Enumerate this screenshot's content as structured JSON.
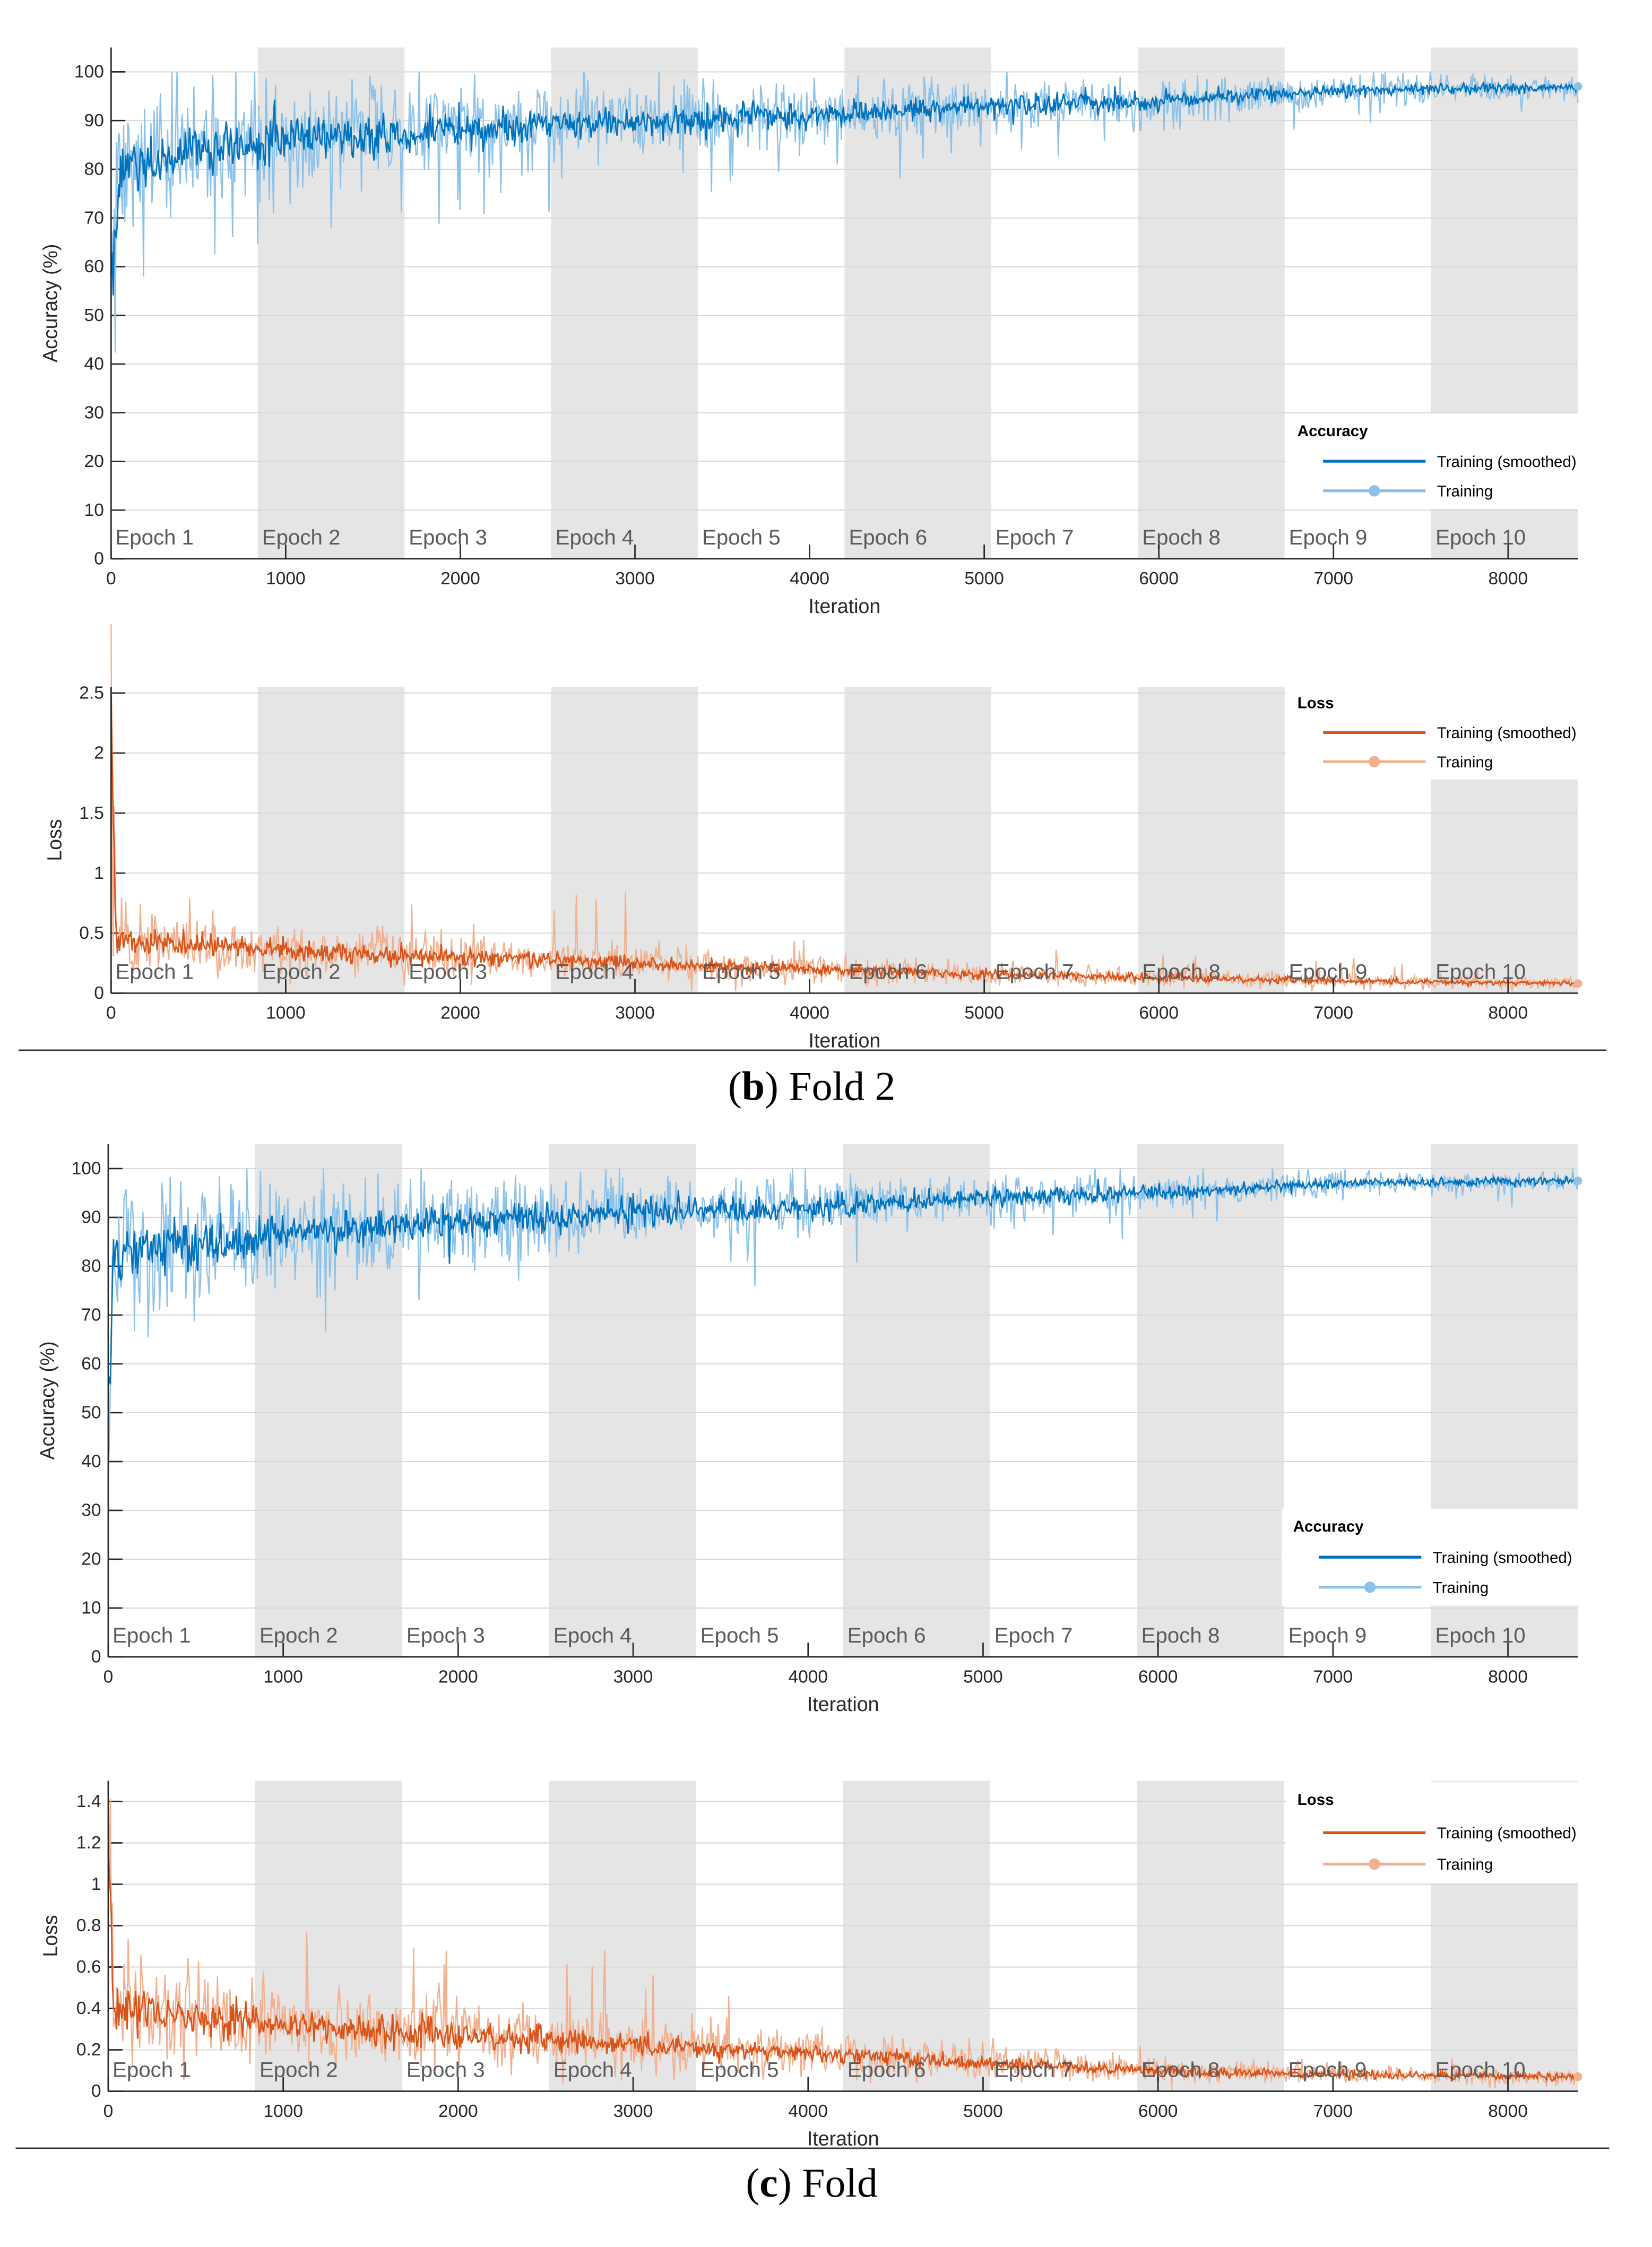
{
  "chart_data": [
    {
      "type": "line",
      "ylabel": "Accuracy (%)",
      "xlabel": "Iteration",
      "xlim": [
        0,
        8400
      ],
      "ylim": [
        0,
        105
      ],
      "xticks": [
        "0",
        "1000",
        "2000",
        "3000",
        "4000",
        "5000",
        "6000",
        "7000",
        "8000"
      ],
      "yticks": [
        "0",
        "10",
        "20",
        "30",
        "40",
        "50",
        "60",
        "70",
        "80",
        "90",
        "100"
      ],
      "grid": "horizontal",
      "epochs": [
        "Epoch 1",
        "Epoch 2",
        "Epoch 3",
        "Epoch 4",
        "Epoch 5",
        "Epoch 6",
        "Epoch 7",
        "Epoch 8",
        "Epoch 9",
        "Epoch 10"
      ],
      "legend": {
        "title": "Accuracy",
        "placement": "lower-right",
        "entries": [
          "Training (smoothed)",
          "Training"
        ]
      },
      "colors": {
        "smoothed": "#0072BD",
        "raw": "#8cc2ea"
      },
      "smoothed_trend": {
        "x": [
          0,
          50,
          500,
          1000,
          2000,
          3000,
          4000,
          5000,
          6000,
          7000,
          8400
        ],
        "y": [
          58,
          80,
          84,
          86,
          88,
          90,
          91,
          93,
          94,
          96,
          97
        ]
      }
    },
    {
      "type": "line",
      "ylabel": "Loss",
      "xlabel": "Iteration",
      "xlim": [
        0,
        8400
      ],
      "ylim": [
        0,
        2.55
      ],
      "xticks": [
        "0",
        "1000",
        "2000",
        "3000",
        "4000",
        "5000",
        "6000",
        "7000",
        "8000"
      ],
      "yticks": [
        "0",
        "0.5",
        "1",
        "1.5",
        "2",
        "2.5"
      ],
      "grid": "horizontal",
      "epochs": [
        "Epoch 1",
        "Epoch 2",
        "Epoch 3",
        "Epoch 4",
        "Epoch 5",
        "Epoch 6",
        "Epoch 7",
        "Epoch 8",
        "Epoch 9",
        "Epoch 10"
      ],
      "legend": {
        "title": "Loss",
        "placement": "upper-right",
        "entries": [
          "Training (smoothed)",
          "Training"
        ]
      },
      "colors": {
        "smoothed": "#D95319",
        "raw": "#f2b08f"
      },
      "smoothed_trend": {
        "x": [
          0,
          30,
          1000,
          2000,
          3000,
          4000,
          5000,
          6000,
          7000,
          8400
        ],
        "y": [
          2.2,
          0.45,
          0.35,
          0.3,
          0.25,
          0.2,
          0.16,
          0.13,
          0.1,
          0.08
        ]
      }
    },
    {
      "type": "line",
      "ylabel": "Accuracy (%)",
      "xlabel": "Iteration",
      "xlim": [
        0,
        8400
      ],
      "ylim": [
        0,
        105
      ],
      "xticks": [
        "0",
        "1000",
        "2000",
        "3000",
        "4000",
        "5000",
        "6000",
        "7000",
        "8000"
      ],
      "yticks": [
        "0",
        "10",
        "20",
        "30",
        "40",
        "50",
        "60",
        "70",
        "80",
        "90",
        "100"
      ],
      "grid": "horizontal",
      "epochs": [
        "Epoch 1",
        "Epoch 2",
        "Epoch 3",
        "Epoch 4",
        "Epoch 5",
        "Epoch 6",
        "Epoch 7",
        "Epoch 8",
        "Epoch 9",
        "Epoch 10"
      ],
      "legend": {
        "title": "Accuracy",
        "placement": "lower-right",
        "entries": [
          "Training (smoothed)",
          "Training"
        ]
      },
      "colors": {
        "smoothed": "#0072BD",
        "raw": "#8cc2ea"
      },
      "smoothed_trend": {
        "x": [
          0,
          30,
          1000,
          2000,
          3000,
          4000,
          5000,
          6000,
          7000,
          8400
        ],
        "y": [
          50,
          82,
          87,
          89,
          91,
          92,
          94,
          95,
          97,
          97.5
        ]
      }
    },
    {
      "type": "line",
      "ylabel": "Loss",
      "xlabel": "Iteration",
      "xlim": [
        0,
        8400
      ],
      "ylim": [
        0,
        1.5
      ],
      "xticks": [
        "0",
        "1000",
        "2000",
        "3000",
        "4000",
        "5000",
        "6000",
        "7000",
        "8000"
      ],
      "yticks": [
        "0",
        "0.2",
        "0.4",
        "0.6",
        "0.8",
        "1",
        "1.2",
        "1.4"
      ],
      "grid": "horizontal",
      "epochs": [
        "Epoch 1",
        "Epoch 2",
        "Epoch 3",
        "Epoch 4",
        "Epoch 5",
        "Epoch 6",
        "Epoch 7",
        "Epoch 8",
        "Epoch 9",
        "Epoch 10"
      ],
      "legend": {
        "title": "Loss",
        "placement": "upper-right",
        "entries": [
          "Training (smoothed)",
          "Training"
        ]
      },
      "colors": {
        "smoothed": "#D95319",
        "raw": "#f2b08f"
      },
      "smoothed_trend": {
        "x": [
          0,
          30,
          1000,
          2000,
          3000,
          4000,
          5000,
          6000,
          7000,
          8400
        ],
        "y": [
          1.3,
          0.42,
          0.32,
          0.27,
          0.22,
          0.18,
          0.14,
          0.1,
          0.08,
          0.07
        ]
      }
    }
  ],
  "captions": [
    {
      "open": "(",
      "letter": "b",
      "rest": ") Fold 2"
    },
    {
      "open": "(",
      "letter": "c",
      "rest": ") Fold"
    }
  ]
}
